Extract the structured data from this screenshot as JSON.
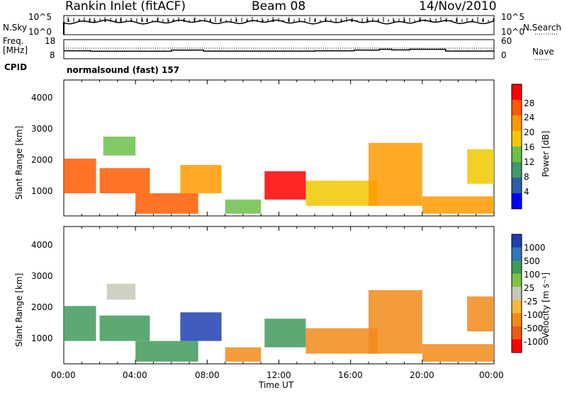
{
  "header": {
    "station": "Rankin Inlet (fitACF)",
    "beam": "Beam 08",
    "date": "14/Nov/2010"
  },
  "chart_data": [
    {
      "type": "line",
      "name": "nsky-nsearch-panel",
      "left_label": "N.Sky",
      "right_label": "N.Search",
      "left_ticks": [
        "10^5",
        "10^0"
      ],
      "right_ticks": [
        "10^5",
        "10^0"
      ],
      "legend_style": "dotted"
    },
    {
      "type": "line",
      "name": "freq-nave-panel",
      "left_label_lines": [
        "Freq.",
        "[MHz]"
      ],
      "right_label": "Nave",
      "left_ticks": [
        "18",
        "8"
      ],
      "right_ticks": [
        "60",
        "0"
      ],
      "legend_style": "dotted",
      "freq_mhz_steps": [
        {
          "t0": 0.0,
          "t1": 1.5,
          "v": 10.8
        },
        {
          "t0": 1.5,
          "t1": 6.0,
          "v": 10.4
        },
        {
          "t0": 6.0,
          "t1": 7.8,
          "v": 11.3
        },
        {
          "t0": 7.8,
          "t1": 14.0,
          "v": 10.5
        },
        {
          "t0": 14.0,
          "t1": 16.2,
          "v": 10.8
        },
        {
          "t0": 16.2,
          "t1": 17.6,
          "v": 11.3
        },
        {
          "t0": 17.6,
          "t1": 18.3,
          "v": 11.9
        },
        {
          "t0": 18.3,
          "t1": 19.3,
          "v": 11.4
        },
        {
          "t0": 19.3,
          "t1": 21.3,
          "v": 11.9
        },
        {
          "t0": 21.3,
          "t1": 24.0,
          "v": 10.6
        }
      ]
    },
    {
      "type": "heatmap",
      "name": "power-panel",
      "quantity": "Power",
      "ylabel": "Slant Range [km]",
      "y_ticks": [
        "1000",
        "2000",
        "3000",
        "4000"
      ],
      "ylim": [
        180,
        4500
      ],
      "xlim_hours": [
        0,
        24
      ],
      "colorbar_label": "Power [dB]",
      "colorbar_ticks": [
        "28",
        "24",
        "20",
        "16",
        "12",
        "8",
        "4"
      ],
      "colorbar_colors": [
        "#ff0000",
        "#ff5a00",
        "#ff9a00",
        "#f0c800",
        "#6cbf4a",
        "#3f9a6a",
        "#2d5fa8",
        "#0000ff"
      ],
      "echo_regions_hours_km": [
        {
          "t0": 0.0,
          "t1": 1.8,
          "r0": 900,
          "r1": 2000,
          "v": 24
        },
        {
          "t0": 2.0,
          "t1": 4.8,
          "r0": 900,
          "r1": 1700,
          "v": 26
        },
        {
          "t0": 2.2,
          "t1": 4.0,
          "r0": 2100,
          "r1": 2700,
          "v": 12
        },
        {
          "t0": 4.0,
          "t1": 7.5,
          "r0": 250,
          "r1": 900,
          "v": 24
        },
        {
          "t0": 6.5,
          "t1": 8.8,
          "r0": 900,
          "r1": 1800,
          "v": 20
        },
        {
          "t0": 9.0,
          "t1": 11.0,
          "r0": 250,
          "r1": 700,
          "v": 12
        },
        {
          "t0": 11.2,
          "t1": 13.5,
          "r0": 700,
          "r1": 1600,
          "v": 28
        },
        {
          "t0": 13.5,
          "t1": 17.5,
          "r0": 500,
          "r1": 1300,
          "v": 18
        },
        {
          "t0": 17.0,
          "t1": 20.0,
          "r0": 500,
          "r1": 2500,
          "v": 22
        },
        {
          "t0": 20.0,
          "t1": 24.0,
          "r0": 250,
          "r1": 800,
          "v": 20
        },
        {
          "t0": 22.5,
          "t1": 24.0,
          "r0": 1200,
          "r1": 2300,
          "v": 16
        }
      ]
    },
    {
      "type": "heatmap",
      "name": "velocity-panel",
      "quantity": "Velocity",
      "ylabel": "Slant Range [km]",
      "y_ticks": [
        "1000",
        "2000",
        "3000",
        "4000"
      ],
      "ylim": [
        180,
        4500
      ],
      "xlim_hours": [
        0,
        24
      ],
      "colorbar_label": "Velocity [m s⁻¹]",
      "colorbar_ticks": [
        "1000",
        "500",
        "100",
        "25",
        "-25",
        "-100",
        "-500",
        "-1000"
      ],
      "colorbar_colors": [
        "#1f3fb0",
        "#2f78b8",
        "#3f9a5a",
        "#7dc242",
        "#c8c8b8",
        "#f6b93c",
        "#f28a1a",
        "#ef5a16",
        "#ff0000"
      ],
      "echo_regions_hours_km": [
        {
          "t0": 0.0,
          "t1": 1.8,
          "r0": 900,
          "r1": 2000,
          "v": 100
        },
        {
          "t0": 2.0,
          "t1": 4.8,
          "r0": 900,
          "r1": 1700,
          "v": 250
        },
        {
          "t0": 2.4,
          "t1": 4.0,
          "r0": 2200,
          "r1": 2700,
          "v": 0
        },
        {
          "t0": 4.0,
          "t1": 7.5,
          "r0": 250,
          "r1": 900,
          "v": 100
        },
        {
          "t0": 6.5,
          "t1": 8.8,
          "r0": 900,
          "r1": 1800,
          "v": 800
        },
        {
          "t0": 9.0,
          "t1": 11.0,
          "r0": 250,
          "r1": 700,
          "v": -200
        },
        {
          "t0": 11.2,
          "t1": 13.5,
          "r0": 700,
          "r1": 1600,
          "v": 200
        },
        {
          "t0": 13.5,
          "t1": 17.5,
          "r0": 500,
          "r1": 1300,
          "v": -300
        },
        {
          "t0": 17.0,
          "t1": 20.0,
          "r0": 500,
          "r1": 2500,
          "v": -400
        },
        {
          "t0": 20.0,
          "t1": 24.0,
          "r0": 250,
          "r1": 800,
          "v": -200
        },
        {
          "t0": 22.5,
          "t1": 24.0,
          "r0": 1200,
          "r1": 2300,
          "v": -400
        }
      ]
    }
  ],
  "cpid": {
    "label": "CPID",
    "value": "normalsound (fast) 157"
  },
  "x_axis": {
    "tick_labels": [
      "00:00",
      "04:00",
      "08:00",
      "12:00",
      "16:00",
      "20:00",
      "00:00"
    ],
    "label": "Time UT"
  }
}
